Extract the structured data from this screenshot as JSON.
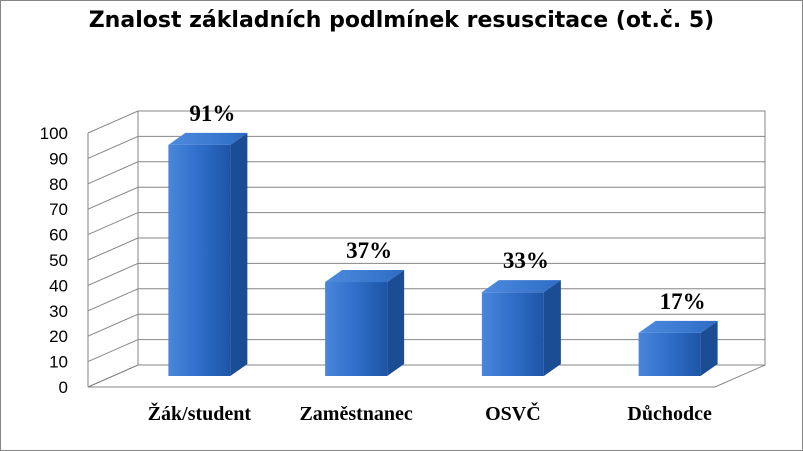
{
  "chart_data": {
    "type": "bar",
    "title": "Znalost základních podlmínek resuscitace (ot.č. 5)",
    "categories": [
      "Žák/student",
      "Zaměstnanec",
      "OSVČ",
      "Důchodce"
    ],
    "values": [
      91,
      37,
      33,
      17
    ],
    "data_labels": [
      "91%",
      "37%",
      "33%",
      "17%"
    ],
    "ylim": [
      0,
      100
    ],
    "yticks": [
      "0",
      "10",
      "20",
      "30",
      "40",
      "50",
      "60",
      "70",
      "80",
      "90",
      "100"
    ],
    "grid": true,
    "legend": "none",
    "style": "3d-column",
    "bar_color": "#2E6DC8"
  }
}
